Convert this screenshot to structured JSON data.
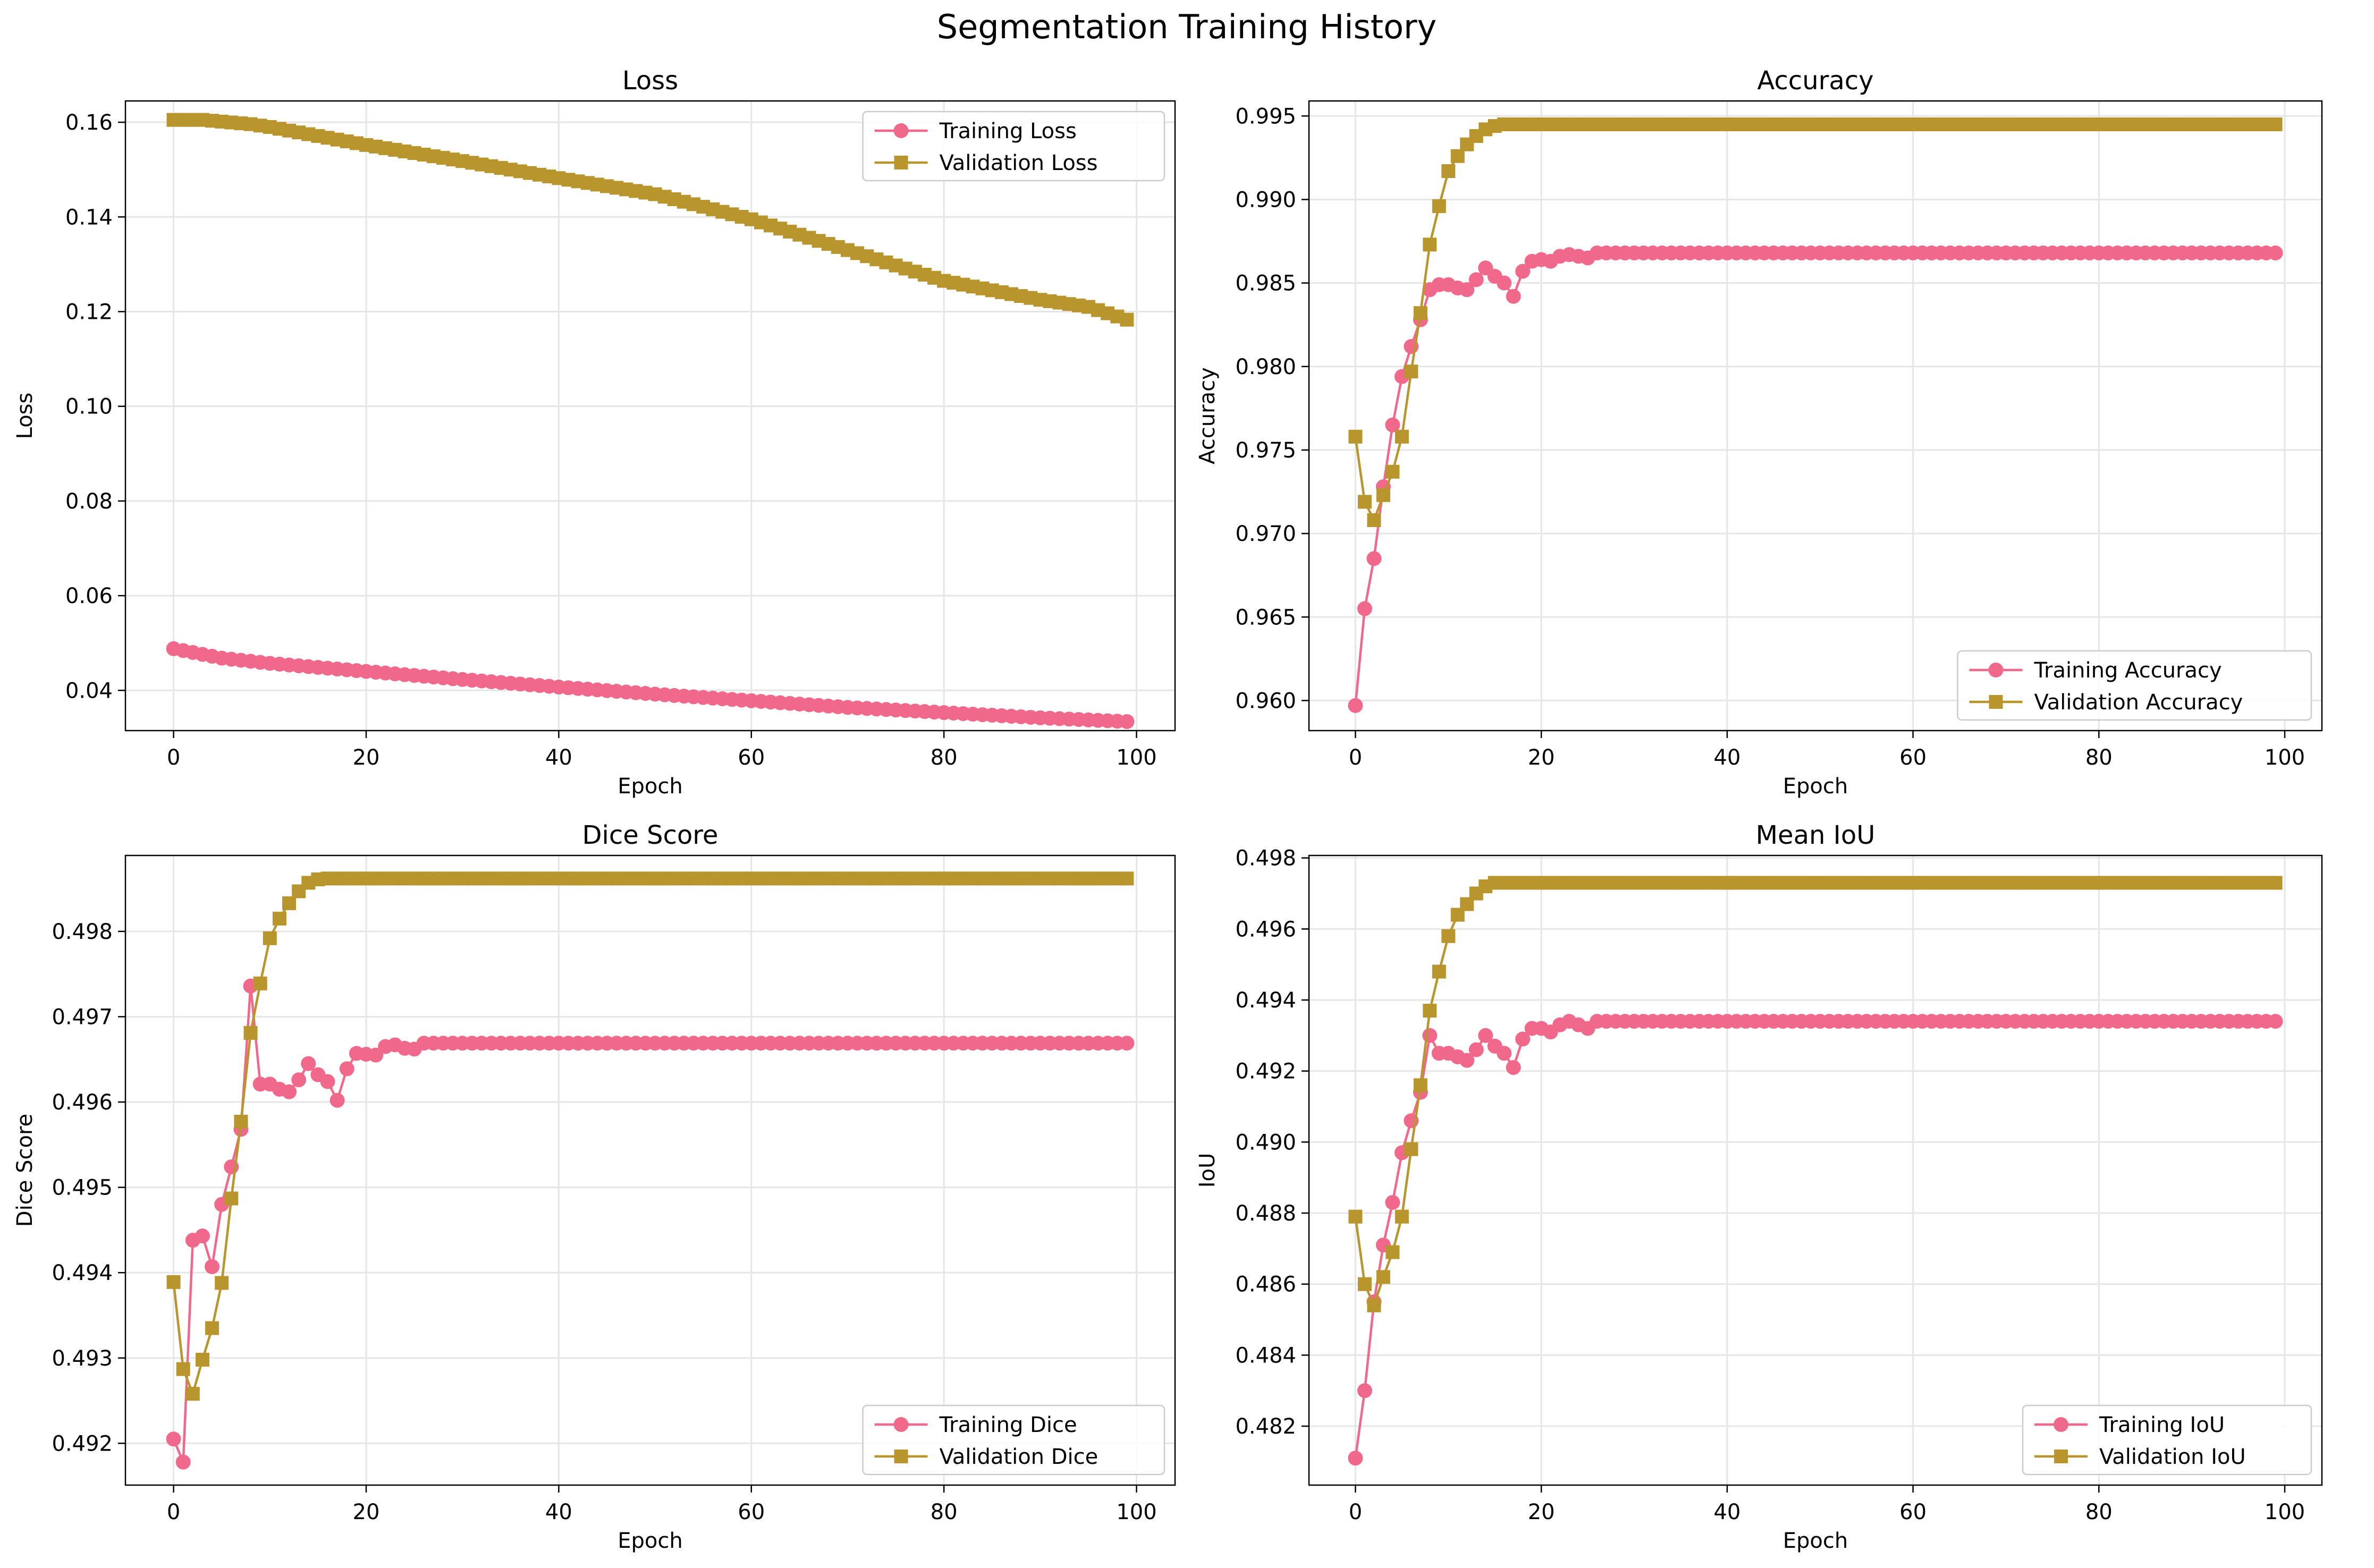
{
  "figure": {
    "title": "Segmentation Training History",
    "colors": {
      "training": "#f0688a",
      "validation": "#b8952d",
      "grid": "#e6e6e6",
      "axes": "#000000"
    }
  },
  "chart_data": [
    {
      "type": "line",
      "title": "Loss",
      "xlabel": "Epoch",
      "ylabel": "Loss",
      "xlim": [
        -5,
        104
      ],
      "ylim": [
        0.0315,
        0.1645
      ],
      "xticks": [
        0,
        20,
        40,
        60,
        80,
        100
      ],
      "yticks": [
        0.04,
        0.06,
        0.08,
        0.1,
        0.12,
        0.14,
        0.16
      ],
      "ytick_decimals": 2,
      "grid": true,
      "legend_position": "upper-right",
      "series": [
        {
          "name": "Training Loss",
          "marker": "circle",
          "color": "#f0688a",
          "generator": {
            "kind": "piecewise",
            "points": [
              [
                0,
                0.0488
              ],
              [
                5,
                0.0468
              ],
              [
                10,
                0.0457
              ],
              [
                20,
                0.044
              ],
              [
                30,
                0.0423
              ],
              [
                40,
                0.0407
              ],
              [
                50,
                0.0392
              ],
              [
                60,
                0.0378
              ],
              [
                70,
                0.0364
              ],
              [
                80,
                0.0353
              ],
              [
                90,
                0.0342
              ],
              [
                99,
                0.0334
              ]
            ]
          }
        },
        {
          "name": "Validation Loss",
          "marker": "square",
          "color": "#b8952d",
          "generator": {
            "kind": "piecewise",
            "points": [
              [
                0,
                0.1605
              ],
              [
                3,
                0.1605
              ],
              [
                8,
                0.1596
              ],
              [
                10,
                0.159
              ],
              [
                20,
                0.1552
              ],
              [
                30,
                0.1518
              ],
              [
                40,
                0.1482
              ],
              [
                50,
                0.1448
              ],
              [
                60,
                0.1395
              ],
              [
                70,
                0.133
              ],
              [
                80,
                0.1265
              ],
              [
                90,
                0.1225
              ],
              [
                95,
                0.121
              ],
              [
                99,
                0.1183
              ]
            ]
          }
        }
      ]
    },
    {
      "type": "line",
      "title": "Accuracy",
      "xlabel": "Epoch",
      "ylabel": "Accuracy",
      "xlim": [
        -5,
        104
      ],
      "ylim": [
        0.9582,
        0.9959
      ],
      "xticks": [
        0,
        20,
        40,
        60,
        80,
        100
      ],
      "yticks": [
        0.96,
        0.965,
        0.97,
        0.975,
        0.98,
        0.985,
        0.99,
        0.995
      ],
      "ytick_decimals": 3,
      "grid": true,
      "legend_position": "lower-right",
      "series": [
        {
          "name": "Training Accuracy",
          "marker": "circle",
          "color": "#f0688a",
          "generator": {
            "kind": "head_then_flat",
            "head": [
              0.9597,
              0.9655,
              0.9685,
              0.9728,
              0.9765,
              0.9794,
              0.9812,
              0.9828,
              0.9846,
              0.9849,
              0.9849,
              0.9847,
              0.9846,
              0.9852,
              0.9859,
              0.9854,
              0.985,
              0.9842,
              0.9857,
              0.9863,
              0.9864,
              0.9863,
              0.9866,
              0.9867,
              0.9866,
              0.9865
            ],
            "flat": 0.9868,
            "n": 100
          }
        },
        {
          "name": "Validation Accuracy",
          "marker": "square",
          "color": "#b8952d",
          "generator": {
            "kind": "head_then_flat",
            "head": [
              0.9758,
              0.9719,
              0.9708,
              0.9723,
              0.9737,
              0.9758,
              0.9797,
              0.9832,
              0.9873,
              0.9896,
              0.9917,
              0.9926,
              0.9933,
              0.9938,
              0.9942,
              0.9944
            ],
            "flat": 0.9945,
            "n": 100
          }
        }
      ]
    },
    {
      "type": "line",
      "title": "Dice Score",
      "xlabel": "Epoch",
      "ylabel": "Dice Score",
      "xlim": [
        -5,
        104
      ],
      "ylim": [
        0.49151,
        0.49889
      ],
      "xticks": [
        0,
        20,
        40,
        60,
        80,
        100
      ],
      "yticks": [
        0.492,
        0.493,
        0.494,
        0.495,
        0.496,
        0.497,
        0.498
      ],
      "ytick_decimals": 3,
      "grid": true,
      "legend_position": "lower-right",
      "series": [
        {
          "name": "Training Dice",
          "marker": "circle",
          "color": "#f0688a",
          "generator": {
            "kind": "head_then_flat",
            "head": [
              0.49205,
              0.49178,
              0.49438,
              0.49443,
              0.49407,
              0.4948,
              0.49524,
              0.49568,
              0.49736,
              0.49621,
              0.49621,
              0.49615,
              0.49612,
              0.49626,
              0.49645,
              0.49632,
              0.49624,
              0.49602,
              0.49639,
              0.49657,
              0.49656,
              0.49655,
              0.49665,
              0.49667,
              0.49663,
              0.49662
            ],
            "flat": 0.49669,
            "n": 100
          }
        },
        {
          "name": "Validation Dice",
          "marker": "square",
          "color": "#b8952d",
          "generator": {
            "kind": "head_then_flat",
            "head": [
              0.49389,
              0.49287,
              0.49258,
              0.49298,
              0.49335,
              0.49388,
              0.49487,
              0.49577,
              0.49681,
              0.49739,
              0.49792,
              0.49815,
              0.49833,
              0.49847,
              0.49857,
              0.49861
            ],
            "flat": 0.49862,
            "n": 100
          }
        }
      ]
    },
    {
      "type": "line",
      "title": "Mean IoU",
      "xlabel": "Epoch",
      "ylabel": "IoU",
      "xlim": [
        -5,
        104
      ],
      "ylim": [
        0.48034,
        0.49807
      ],
      "xticks": [
        0,
        20,
        40,
        60,
        80,
        100
      ],
      "yticks": [
        0.482,
        0.484,
        0.486,
        0.488,
        0.49,
        0.492,
        0.494,
        0.496,
        0.498
      ],
      "ytick_decimals": 3,
      "grid": true,
      "legend_position": "lower-right",
      "series": [
        {
          "name": "Training IoU",
          "marker": "circle",
          "color": "#f0688a",
          "generator": {
            "kind": "head_then_flat",
            "head": [
              0.4811,
              0.483,
              0.4855,
              0.4871,
              0.4883,
              0.4897,
              0.4906,
              0.4914,
              0.493,
              0.4925,
              0.4925,
              0.4924,
              0.4923,
              0.4926,
              0.493,
              0.4927,
              0.4925,
              0.4921,
              0.4929,
              0.4932,
              0.4932,
              0.4931,
              0.4933,
              0.4934,
              0.4933,
              0.4932
            ],
            "flat": 0.4934,
            "n": 100
          }
        },
        {
          "name": "Validation IoU",
          "marker": "square",
          "color": "#b8952d",
          "generator": {
            "kind": "head_then_flat",
            "head": [
              0.4879,
              0.486,
              0.4854,
              0.4862,
              0.4869,
              0.4879,
              0.4898,
              0.4916,
              0.4937,
              0.4948,
              0.4958,
              0.4964,
              0.4967,
              0.497,
              0.4972,
              0.4973
            ],
            "flat": 0.4973,
            "n": 100
          }
        }
      ]
    }
  ]
}
